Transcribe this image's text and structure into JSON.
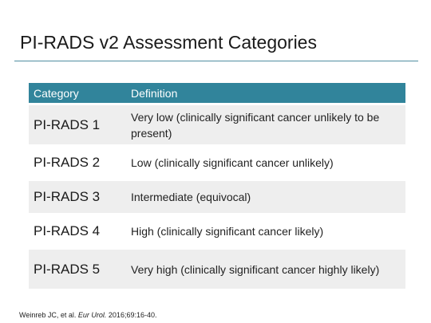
{
  "title": "PI-RADS v2 Assessment Categories",
  "table": {
    "headers": {
      "category": "Category",
      "definition": "Definition"
    },
    "rows": [
      {
        "category": "PI-RADS 1",
        "definition": "Very low (clinically significant cancer unlikely to be present)"
      },
      {
        "category": "PI-RADS 2",
        "definition": "Low (clinically significant cancer unlikely)"
      },
      {
        "category": "PI-RADS 3",
        "definition": "Intermediate (equivocal)"
      },
      {
        "category": "PI-RADS 4",
        "definition": "High (clinically significant cancer likely)"
      },
      {
        "category": "PI-RADS 5",
        "definition": "Very high (clinically significant cancer highly likely)"
      }
    ]
  },
  "citation": {
    "authors": "Weinreb JC, et al.",
    "journal": "Eur Urol.",
    "details": "2016;69:16-40."
  },
  "colors": {
    "header_bg": "#31849b",
    "title_rule": "#4f8ea0",
    "row_shade": "#eeeeee"
  }
}
